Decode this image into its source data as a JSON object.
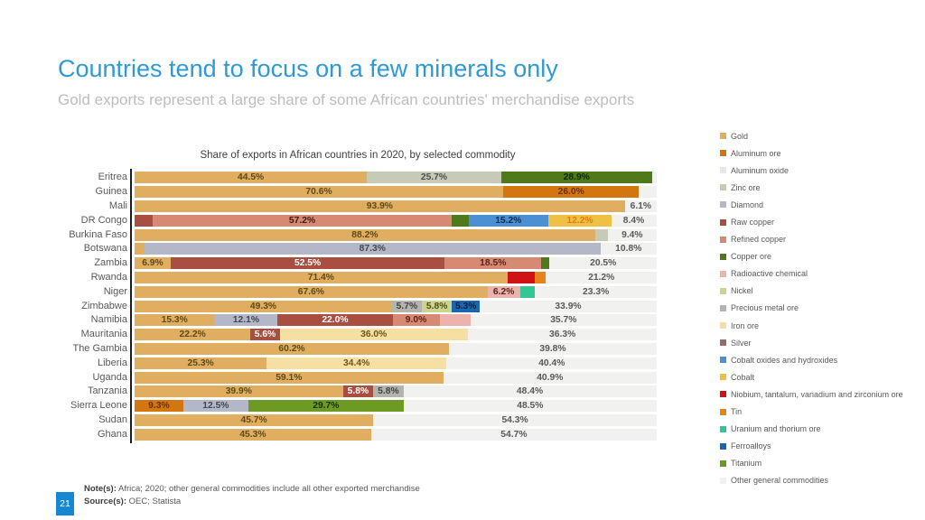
{
  "slide": {
    "title": "Countries tend to focus on a few minerals only",
    "subtitle": "Gold exports represent a large share of some African countries' merchandise exports",
    "page_number": "21",
    "note_label": "Note(s):",
    "note_text": " Africa; 2020; other general commodities include all other exported merchandise",
    "source_label": "Source(s):",
    "source_text": " OEC; Statista",
    "accent_color": "#2e9ad5",
    "page_badge_color": "#1687d2"
  },
  "chart_data": {
    "type": "bar",
    "stacked": true,
    "orientation": "horizontal",
    "title": "Share of exports in African countries in 2020, by selected commodity",
    "unit": "%",
    "xlim": [
      0,
      100
    ],
    "grid": false,
    "legend_position": "right",
    "track_color": "#f1f1f0",
    "axis_color": "#1c1c1c",
    "commodities": [
      {
        "key": "gold",
        "label": "Gold",
        "color": "#dfae60"
      },
      {
        "key": "aluminum_ore",
        "label": "Aluminum ore",
        "color": "#d2770f"
      },
      {
        "key": "aluminum_oxide",
        "label": "Aluminum oxide",
        "color": "#e9e9e2"
      },
      {
        "key": "zinc_ore",
        "label": "Zinc ore",
        "color": "#c7cab6"
      },
      {
        "key": "diamond",
        "label": "Diamond",
        "color": "#b3b7c8"
      },
      {
        "key": "raw_copper",
        "label": "Raw copper",
        "color": "#a84f41"
      },
      {
        "key": "refined_copper",
        "label": "Refined copper",
        "color": "#d68a74"
      },
      {
        "key": "copper_ore",
        "label": "Copper ore",
        "color": "#4e7a1b"
      },
      {
        "key": "radioactive_chemical",
        "label": "Radioactive chemical",
        "color": "#ebb3ab"
      },
      {
        "key": "nickel",
        "label": "Nickel",
        "color": "#cdd48e"
      },
      {
        "key": "precious_metal_ore",
        "label": "Precious metal ore",
        "color": "#b3b3b0"
      },
      {
        "key": "iron_ore",
        "label": "Iron ore",
        "color": "#f5dfa2"
      },
      {
        "key": "silver",
        "label": "Silver",
        "color": "#9a6b6b"
      },
      {
        "key": "cobalt_oxides",
        "label": "Cobalt oxides and hydroxides",
        "color": "#4a90d3"
      },
      {
        "key": "cobalt",
        "label": "Cobalt",
        "color": "#efc043"
      },
      {
        "key": "niobium",
        "label": "Niobium, tantalum, vanadium and zirconium ore",
        "color": "#d01216"
      },
      {
        "key": "tin",
        "label": "Tin",
        "color": "#e8821a"
      },
      {
        "key": "uranium",
        "label": "Uranium and thorium ore",
        "color": "#33c795"
      },
      {
        "key": "ferroalloys",
        "label": "Ferroalloys",
        "color": "#1a65af"
      },
      {
        "key": "titanium",
        "label": "Titanium",
        "color": "#6d9a22"
      },
      {
        "key": "other",
        "label": "Other general commodities",
        "color": "#f1f1f0"
      }
    ],
    "rows": [
      {
        "country": "Eritrea",
        "segments": [
          {
            "commodity": "gold",
            "value": 44.5,
            "label": "44.5%",
            "label_color": "#5e4a14"
          },
          {
            "commodity": "zinc_ore",
            "value": 25.7,
            "label": "25.7%",
            "label_color": "#4d4d4d"
          },
          {
            "commodity": "copper_ore",
            "value": 28.9,
            "label": "28.9%",
            "label_color": "#122a06"
          },
          {
            "commodity": "other",
            "value": 0.9,
            "label": null,
            "label_color": "#595959"
          }
        ]
      },
      {
        "country": "Guinea",
        "segments": [
          {
            "commodity": "gold",
            "value": 70.6,
            "label": "70.6%",
            "label_color": "#5e4a14"
          },
          {
            "commodity": "aluminum_ore",
            "value": 26.0,
            "label": "26.0%",
            "label_color": "#6b3005"
          },
          {
            "commodity": "other",
            "value": 3.4,
            "label": null,
            "label_color": "#595959"
          }
        ]
      },
      {
        "country": "Mali",
        "segments": [
          {
            "commodity": "gold",
            "value": 93.9,
            "label": "93.9%",
            "label_color": "#5e4a14"
          },
          {
            "commodity": "other",
            "value": 6.1,
            "label": "6.1%",
            "label_color": "#595959"
          }
        ]
      },
      {
        "country": "DR Congo",
        "segments": [
          {
            "commodity": "raw_copper",
            "value": 3.5,
            "label": null,
            "label_color": "#ffffff"
          },
          {
            "commodity": "refined_copper",
            "value": 57.2,
            "label": "57.2%",
            "label_color": "#3b1a10"
          },
          {
            "commodity": "copper_ore",
            "value": 3.3,
            "label": null,
            "label_color": "#ffffff"
          },
          {
            "commodity": "cobalt_oxides",
            "value": 15.2,
            "label": "15.2%",
            "label_color": "#0e2a50"
          },
          {
            "commodity": "cobalt",
            "value": 12.2,
            "label": "12.2%",
            "label_color": "#e07d17"
          },
          {
            "commodity": "other",
            "value": 8.4,
            "label": "8.4%",
            "label_color": "#595959"
          }
        ]
      },
      {
        "country": "Burkina Faso",
        "segments": [
          {
            "commodity": "gold",
            "value": 88.2,
            "label": "88.2%",
            "label_color": "#5e4a14"
          },
          {
            "commodity": "zinc_ore",
            "value": 2.4,
            "label": null,
            "label_color": "#4d4d4d"
          },
          {
            "commodity": "other",
            "value": 9.4,
            "label": "9.4%",
            "label_color": "#595959"
          }
        ]
      },
      {
        "country": "Botswana",
        "segments": [
          {
            "commodity": "gold",
            "value": 1.9,
            "label": null,
            "label_color": "#5e4a14"
          },
          {
            "commodity": "diamond",
            "value": 87.3,
            "label": "87.3%",
            "label_color": "#43454f"
          },
          {
            "commodity": "other",
            "value": 10.8,
            "label": "10.8%",
            "label_color": "#595959"
          }
        ]
      },
      {
        "country": "Zambia",
        "segments": [
          {
            "commodity": "gold",
            "value": 6.9,
            "label": "6.9%",
            "label_color": "#5e4a14"
          },
          {
            "commodity": "raw_copper",
            "value": 52.5,
            "label": "52.5%",
            "label_color": "#ffffff"
          },
          {
            "commodity": "refined_copper",
            "value": 18.5,
            "label": "18.5%",
            "label_color": "#5c221a"
          },
          {
            "commodity": "copper_ore",
            "value": 1.6,
            "label": null,
            "label_color": "#ffffff"
          },
          {
            "commodity": "other",
            "value": 20.5,
            "label": "20.5%",
            "label_color": "#595959"
          }
        ]
      },
      {
        "country": "Rwanda",
        "segments": [
          {
            "commodity": "gold",
            "value": 71.4,
            "label": "71.4%",
            "label_color": "#5e4a14"
          },
          {
            "commodity": "niobium",
            "value": 5.2,
            "label": null,
            "label_color": "#ffffff"
          },
          {
            "commodity": "tin",
            "value": 2.2,
            "label": null,
            "label_color": "#ffffff"
          },
          {
            "commodity": "other",
            "value": 21.2,
            "label": "21.2%",
            "label_color": "#595959"
          }
        ]
      },
      {
        "country": "Niger",
        "segments": [
          {
            "commodity": "gold",
            "value": 67.6,
            "label": "67.6%",
            "label_color": "#5e4a14"
          },
          {
            "commodity": "radioactive_chemical",
            "value": 6.2,
            "label": "6.2%",
            "label_color": "#54241c"
          },
          {
            "commodity": "uranium",
            "value": 2.9,
            "label": null,
            "label_color": "#ffffff"
          },
          {
            "commodity": "other",
            "value": 23.3,
            "label": "23.3%",
            "label_color": "#595959"
          }
        ]
      },
      {
        "country": "Zimbabwe",
        "segments": [
          {
            "commodity": "gold",
            "value": 49.3,
            "label": "49.3%",
            "label_color": "#5e4a14"
          },
          {
            "commodity": "precious_metal_ore",
            "value": 5.7,
            "label": "5.7%",
            "label_color": "#42423f"
          },
          {
            "commodity": "nickel",
            "value": 5.8,
            "label": "5.8%",
            "label_color": "#4a5214"
          },
          {
            "commodity": "ferroalloys",
            "value": 5.3,
            "label": "5.3%",
            "label_color": "#081f3d"
          },
          {
            "commodity": "other",
            "value": 33.9,
            "label": "33.9%",
            "label_color": "#595959"
          }
        ]
      },
      {
        "country": "Namibia",
        "segments": [
          {
            "commodity": "gold",
            "value": 15.3,
            "label": "15.3%",
            "label_color": "#5e4a14"
          },
          {
            "commodity": "diamond",
            "value": 12.1,
            "label": "12.1%",
            "label_color": "#43454f"
          },
          {
            "commodity": "raw_copper",
            "value": 22.0,
            "label": "22.0%",
            "label_color": "#ffffff"
          },
          {
            "commodity": "refined_copper",
            "value": 9.0,
            "label": "9.0%",
            "label_color": "#5c221a"
          },
          {
            "commodity": "radioactive_chemical",
            "value": 5.9,
            "label": null,
            "label_color": "#54241c"
          },
          {
            "commodity": "other",
            "value": 35.7,
            "label": "35.7%",
            "label_color": "#595959"
          }
        ]
      },
      {
        "country": "Mauritania",
        "segments": [
          {
            "commodity": "gold",
            "value": 22.2,
            "label": "22.2%",
            "label_color": "#5e4a14"
          },
          {
            "commodity": "raw_copper",
            "value": 5.6,
            "label": "5.6%",
            "label_color": "#ffffff"
          },
          {
            "commodity": "iron_ore",
            "value": 36.0,
            "label": "36.0%",
            "label_color": "#6b5518"
          },
          {
            "commodity": "other",
            "value": 36.3,
            "label": "36.3%",
            "label_color": "#595959"
          }
        ]
      },
      {
        "country": "The Gambia",
        "segments": [
          {
            "commodity": "gold",
            "value": 60.2,
            "label": "60.2%",
            "label_color": "#5e4a14"
          },
          {
            "commodity": "other",
            "value": 39.8,
            "label": "39.8%",
            "label_color": "#595959"
          }
        ]
      },
      {
        "country": "Liberia",
        "segments": [
          {
            "commodity": "gold",
            "value": 25.3,
            "label": "25.3%",
            "label_color": "#5e4a14"
          },
          {
            "commodity": "iron_ore",
            "value": 34.4,
            "label": "34.4%",
            "label_color": "#6b5518"
          },
          {
            "commodity": "other",
            "value": 40.4,
            "label": "40.4%",
            "label_color": "#595959"
          }
        ]
      },
      {
        "country": "Uganda",
        "segments": [
          {
            "commodity": "gold",
            "value": 59.1,
            "label": "59.1%",
            "label_color": "#5e4a14"
          },
          {
            "commodity": "other",
            "value": 40.9,
            "label": "40.9%",
            "label_color": "#595959"
          }
        ]
      },
      {
        "country": "Tanzania",
        "segments": [
          {
            "commodity": "gold",
            "value": 39.9,
            "label": "39.9%",
            "label_color": "#5e4a14"
          },
          {
            "commodity": "raw_copper",
            "value": 5.8,
            "label": "5.8%",
            "label_color": "#ffffff"
          },
          {
            "commodity": "precious_metal_ore",
            "value": 5.8,
            "label": "5.8%",
            "label_color": "#42423f"
          },
          {
            "commodity": "other",
            "value": 48.4,
            "label": "48.4%",
            "label_color": "#595959"
          }
        ]
      },
      {
        "country": "Sierra Leone",
        "segments": [
          {
            "commodity": "aluminum_ore",
            "value": 9.3,
            "label": "9.3%",
            "label_color": "#6b3005"
          },
          {
            "commodity": "diamond",
            "value": 12.5,
            "label": "12.5%",
            "label_color": "#43454f"
          },
          {
            "commodity": "titanium",
            "value": 29.7,
            "label": "29.7%",
            "label_color": "#17300a"
          },
          {
            "commodity": "other",
            "value": 48.5,
            "label": "48.5%",
            "label_color": "#595959"
          }
        ]
      },
      {
        "country": "Sudan",
        "segments": [
          {
            "commodity": "gold",
            "value": 45.7,
            "label": "45.7%",
            "label_color": "#5e4a14"
          },
          {
            "commodity": "other",
            "value": 54.3,
            "label": "54.3%",
            "label_color": "#595959"
          }
        ]
      },
      {
        "country": "Ghana",
        "segments": [
          {
            "commodity": "gold",
            "value": 45.3,
            "label": "45.3%",
            "label_color": "#5e4a14"
          },
          {
            "commodity": "other",
            "value": 54.7,
            "label": "54.7%",
            "label_color": "#595959"
          }
        ]
      }
    ]
  }
}
